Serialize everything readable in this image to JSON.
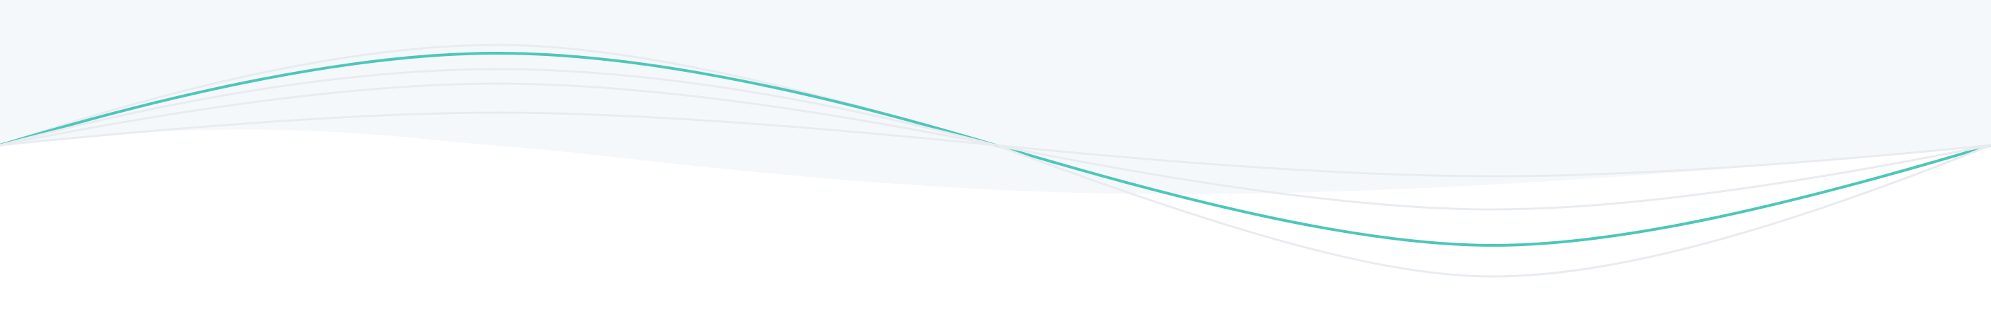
{
  "palette": {
    "page_background": "#ffffff",
    "wave_fill": "#f5f8fb",
    "faint_stroke": "#e8ecf0",
    "accent_stroke": "#4cc7b9"
  },
  "decoration": {
    "type": "layered-sine-wave-divider",
    "accent_wave": "teal"
  }
}
